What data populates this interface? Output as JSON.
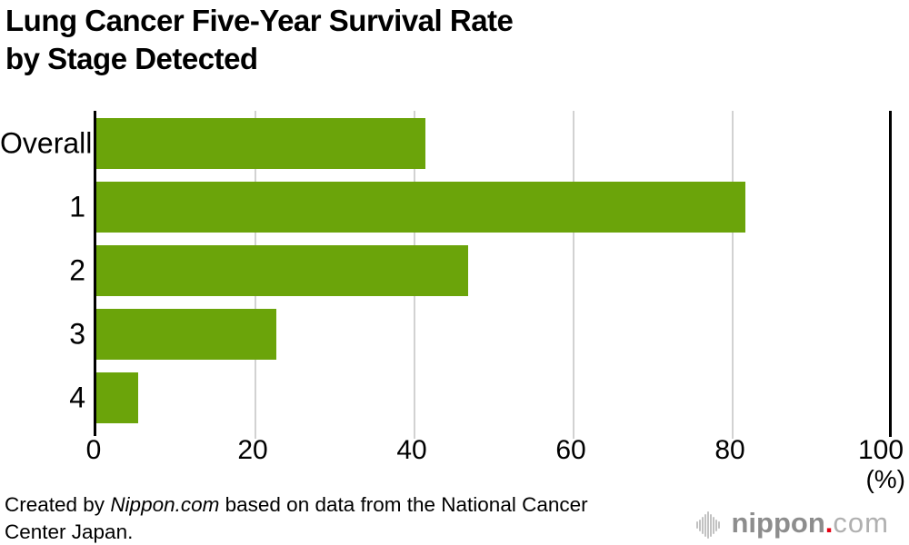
{
  "header": {
    "title_line1": "Lung Cancer Five-Year Survival Rate",
    "title_line2": "by Stage Detected"
  },
  "chart_data": {
    "type": "bar",
    "orientation": "horizontal",
    "title": "Lung Cancer Five-Year Survival Rate by Stage Detected",
    "categories": [
      "Overall",
      "1",
      "2",
      "3",
      "4"
    ],
    "values": [
      41.4,
      81.6,
      46.7,
      22.6,
      5.2
    ],
    "xlim": [
      0,
      100
    ],
    "x_ticks": [
      0,
      20,
      40,
      60,
      80,
      100
    ],
    "xlabel_unit": "(%)",
    "grid": true,
    "legend": false,
    "bar_color": "#6ba40a",
    "gridline_color": "#d2d2d2",
    "axis_color": "#000000"
  },
  "footer": {
    "credit_prefix": "Created by ",
    "credit_source": "Nippon.com",
    "credit_suffix": " based on data from the National Cancer Center Japan."
  },
  "logo": {
    "icon": "sound-wave-icon",
    "name": "nippon",
    "dot": ".",
    "tld": "com",
    "name_color": "#8d8d8d",
    "dot_color": "#e60012",
    "tld_color": "#b0b0b0"
  }
}
